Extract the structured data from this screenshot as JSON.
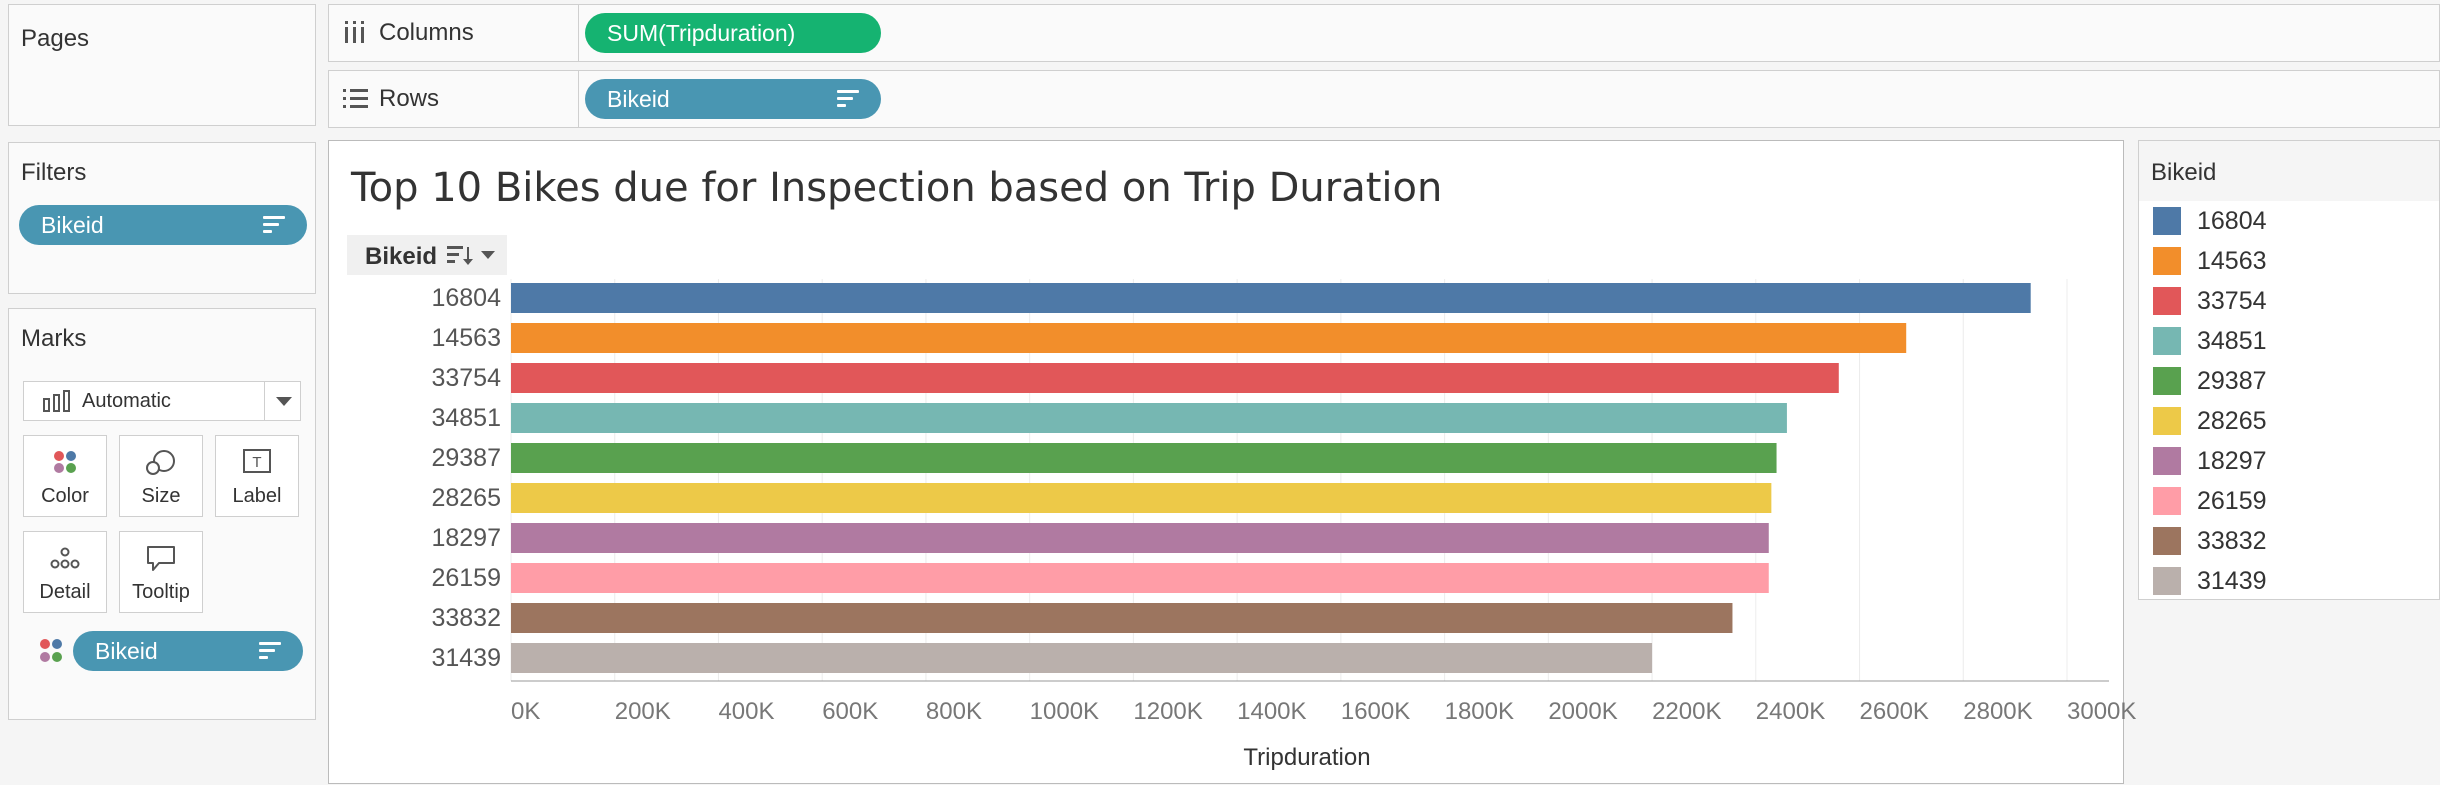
{
  "pages": {
    "title": "Pages"
  },
  "filters": {
    "title": "Filters",
    "pill": "Bikeid"
  },
  "marks": {
    "title": "Marks",
    "type_select": "Automatic",
    "buttons": {
      "color": "Color",
      "size": "Size",
      "label": "Label",
      "detail": "Detail",
      "tooltip": "Tooltip"
    },
    "color_pill": "Bikeid"
  },
  "shelves": {
    "columns_label": "Columns",
    "columns_pill": "SUM(Tripduration)",
    "rows_label": "Rows",
    "rows_pill": "Bikeid"
  },
  "chart_header": {
    "row_field": "Bikeid"
  },
  "legend": {
    "title": "Bikeid",
    "items": [
      {
        "label": "16804",
        "color": "#4e79a7"
      },
      {
        "label": "14563",
        "color": "#f28e2b"
      },
      {
        "label": "33754",
        "color": "#e15759"
      },
      {
        "label": "34851",
        "color": "#76b7b2"
      },
      {
        "label": "29387",
        "color": "#59a14f"
      },
      {
        "label": "28265",
        "color": "#edc948"
      },
      {
        "label": "18297",
        "color": "#b07aa1"
      },
      {
        "label": "26159",
        "color": "#ff9da7"
      },
      {
        "label": "33832",
        "color": "#9c755f"
      },
      {
        "label": "31439",
        "color": "#bab0ac"
      }
    ]
  },
  "chart_data": {
    "type": "bar",
    "orientation": "horizontal",
    "title": "Top 10 Bikes due for Inspection based on Trip Duration",
    "xlabel": "Tripduration",
    "ylabel": "Bikeid",
    "categories": [
      "16804",
      "14563",
      "33754",
      "34851",
      "29387",
      "28265",
      "18297",
      "26159",
      "33832",
      "31439"
    ],
    "values": [
      2930000,
      2690000,
      2560000,
      2460000,
      2440000,
      2430000,
      2425000,
      2425000,
      2355000,
      2200000
    ],
    "colors": [
      "#4e79a7",
      "#f28e2b",
      "#e15759",
      "#76b7b2",
      "#59a14f",
      "#edc948",
      "#b07aa1",
      "#ff9da7",
      "#9c755f",
      "#bab0ac"
    ],
    "xlim": [
      0,
      3000000
    ],
    "xticks": [
      0,
      200000,
      400000,
      600000,
      800000,
      1000000,
      1200000,
      1400000,
      1600000,
      1800000,
      2000000,
      2200000,
      2400000,
      2600000,
      2800000,
      3000000
    ],
    "xtick_labels": [
      "0K",
      "200K",
      "400K",
      "600K",
      "800K",
      "1000K",
      "1200K",
      "1400K",
      "1600K",
      "1800K",
      "2000K",
      "2200K",
      "2400K",
      "2600K",
      "2800K",
      "3000K"
    ],
    "grid": true,
    "legend_position": "right"
  }
}
